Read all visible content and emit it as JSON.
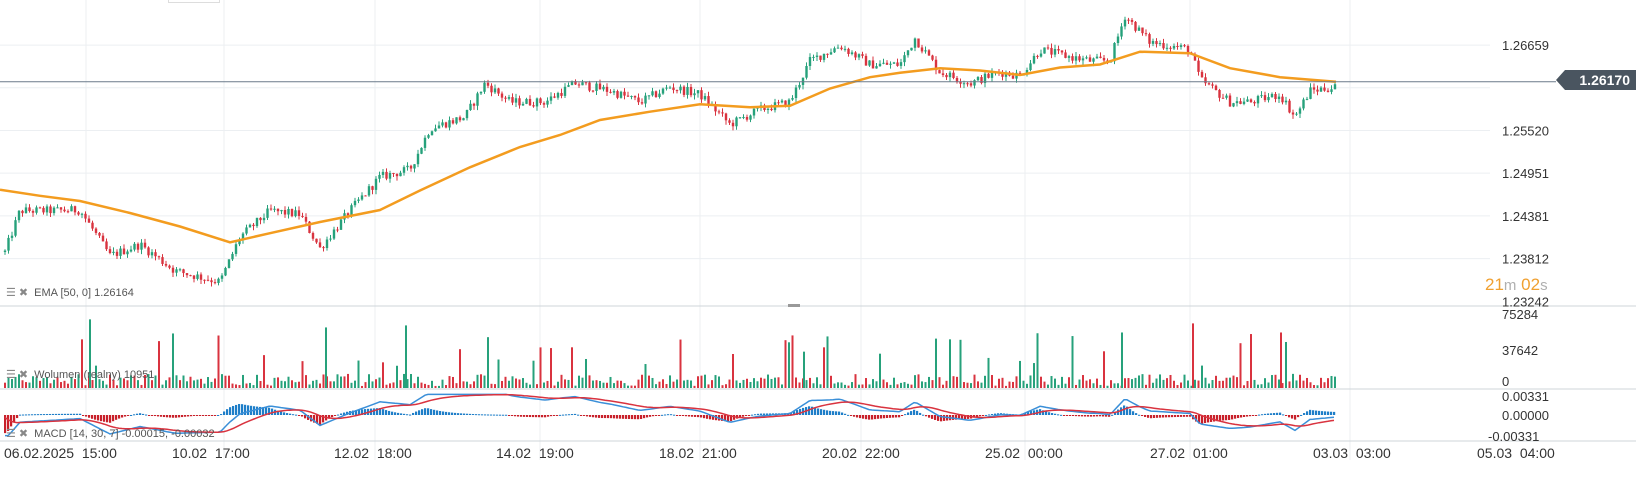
{
  "instrument": {
    "current_price": "1.26170",
    "countdown_min": "21",
    "countdown_min_unit": "m",
    "countdown_sec": "02",
    "countdown_sec_unit": "s"
  },
  "indicators": {
    "ema": {
      "label": "EMA [50, 0]",
      "value": "1.26164"
    },
    "volume": {
      "label": "Wolumen (realny)",
      "value": "10951"
    },
    "macd": {
      "label": "MACD [14, 30, 7]",
      "value1": "-0.00015",
      "value2": "-0.00032"
    }
  },
  "colors": {
    "up": "#26a17b",
    "down": "#d9333f",
    "ema": "#f39c1f",
    "macd_line": "#3a8fd8",
    "signal_line": "#d9333f",
    "hist_pos": "#1e7ec8",
    "hist_neg": "#c8202a",
    "price_line": "#6b7a8a",
    "grid": "#eceff2"
  },
  "price_axis": [
    "1.26659",
    "1.25520",
    "1.24951",
    "1.24381",
    "1.23812",
    "1.23242"
  ],
  "volume_axis": [
    "75284",
    "37642",
    "0"
  ],
  "macd_axis": [
    "0.00331",
    "0.00000",
    "-0.00331"
  ],
  "time_axis": [
    "06.02.2025  15:00",
    "10.02  17:00",
    "12.02  18:00",
    "14.02  19:00",
    "18.02  21:00",
    "20.02  22:00",
    "25.02  00:00",
    "27.02  01:00",
    "03.03  03:00",
    "05.03  04:00"
  ],
  "chart_data": {
    "type": "candlestick",
    "price_range": [
      1.2318,
      1.2726
    ],
    "current_price": 1.2617,
    "ema_50_last": 1.26164,
    "ema_path": [
      [
        0,
        1.2473
      ],
      [
        40,
        1.2465
      ],
      [
        80,
        1.2458
      ],
      [
        130,
        1.2442
      ],
      [
        180,
        1.2424
      ],
      [
        230,
        1.2403
      ],
      [
        270,
        1.2415
      ],
      [
        320,
        1.243
      ],
      [
        380,
        1.2446
      ],
      [
        420,
        1.2472
      ],
      [
        470,
        1.2503
      ],
      [
        520,
        1.253
      ],
      [
        560,
        1.2546
      ],
      [
        600,
        1.2566
      ],
      [
        650,
        1.2577
      ],
      [
        700,
        1.2587
      ],
      [
        750,
        1.2583
      ],
      [
        790,
        1.2585
      ],
      [
        830,
        1.2608
      ],
      [
        870,
        1.2623
      ],
      [
        900,
        1.2629
      ],
      [
        940,
        1.2635
      ],
      [
        980,
        1.2632
      ],
      [
        1020,
        1.2626
      ],
      [
        1060,
        1.2636
      ],
      [
        1100,
        1.264
      ],
      [
        1140,
        1.2657
      ],
      [
        1190,
        1.2655
      ],
      [
        1230,
        1.2635
      ],
      [
        1280,
        1.2623
      ],
      [
        1336,
        1.2617
      ]
    ],
    "candle_anchors": [
      [
        5,
        1.239
      ],
      [
        20,
        1.2445
      ],
      [
        45,
        1.2445
      ],
      [
        80,
        1.2446
      ],
      [
        110,
        1.2385
      ],
      [
        140,
        1.24
      ],
      [
        175,
        1.2365
      ],
      [
        220,
        1.235
      ],
      [
        240,
        1.241
      ],
      [
        270,
        1.2445
      ],
      [
        300,
        1.244
      ],
      [
        320,
        1.2395
      ],
      [
        350,
        1.2445
      ],
      [
        380,
        1.249
      ],
      [
        410,
        1.25
      ],
      [
        430,
        1.2555
      ],
      [
        465,
        1.257
      ],
      [
        485,
        1.2615
      ],
      [
        510,
        1.259
      ],
      [
        545,
        1.259
      ],
      [
        575,
        1.2615
      ],
      [
        610,
        1.2605
      ],
      [
        640,
        1.259
      ],
      [
        670,
        1.261
      ],
      [
        700,
        1.26
      ],
      [
        730,
        1.256
      ],
      [
        760,
        1.258
      ],
      [
        790,
        1.259
      ],
      [
        810,
        1.2645
      ],
      [
        840,
        1.2665
      ],
      [
        870,
        1.264
      ],
      [
        900,
        1.264
      ],
      [
        915,
        1.2675
      ],
      [
        940,
        1.263
      ],
      [
        970,
        1.2615
      ],
      [
        1000,
        1.263
      ],
      [
        1020,
        1.2625
      ],
      [
        1040,
        1.266
      ],
      [
        1070,
        1.265
      ],
      [
        1090,
        1.2645
      ],
      [
        1110,
        1.2645
      ],
      [
        1125,
        1.2705
      ],
      [
        1150,
        1.267
      ],
      [
        1170,
        1.2665
      ],
      [
        1190,
        1.266
      ],
      [
        1200,
        1.262
      ],
      [
        1230,
        1.259
      ],
      [
        1250,
        1.259
      ],
      [
        1280,
        1.26
      ],
      [
        1295,
        1.257
      ],
      [
        1310,
        1.2605
      ],
      [
        1336,
        1.261
      ]
    ],
    "volume_range": [
      0,
      75284
    ],
    "macd_range": [
      -0.00331,
      0.00331
    ],
    "macd_last": -0.00015,
    "signal_last": -0.00032
  }
}
